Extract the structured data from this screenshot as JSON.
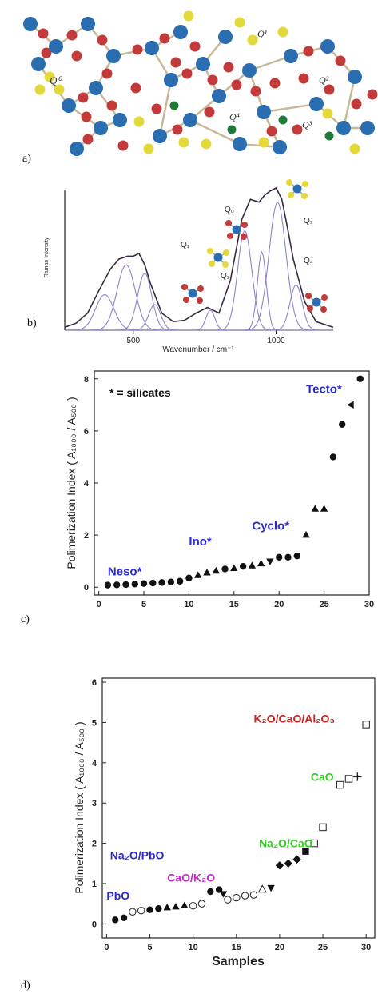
{
  "panel_labels": {
    "a": "a)",
    "b": "b)",
    "c": "c)",
    "d": "d)"
  },
  "chart_data": [
    {
      "panel": "a",
      "type": "other",
      "annotations": [
        "Q⁰",
        "Q¹",
        "Q²",
        "Q³",
        "Q⁴"
      ]
    },
    {
      "panel": "b",
      "type": "line",
      "xlabel": "Wavenumber / cm⁻¹",
      "ylabel": "Raman Intensity",
      "xlim": [
        260,
        1200
      ],
      "xticks": [
        "500",
        "1000"
      ],
      "xtick_values": [
        500,
        1000
      ],
      "annotations": [
        "Q₀",
        "Q₁",
        "Q₂",
        "Q₃",
        "Q₄"
      ],
      "series": [
        {
          "x": [
            260,
            300,
            340,
            380,
            420,
            450,
            480,
            500,
            520,
            540,
            560,
            600,
            640,
            680,
            720,
            760,
            800,
            840,
            880,
            910,
            940,
            960,
            980,
            1000,
            1020,
            1040,
            1060,
            1080,
            1100,
            1140,
            1200
          ],
          "values": [
            0.02,
            0.05,
            0.12,
            0.28,
            0.43,
            0.5,
            0.52,
            0.52,
            0.54,
            0.46,
            0.33,
            0.12,
            0.06,
            0.07,
            0.12,
            0.16,
            0.12,
            0.35,
            0.78,
            0.92,
            0.9,
            0.95,
            0.98,
            1.0,
            0.92,
            0.72,
            0.5,
            0.35,
            0.2,
            0.06,
            0.02
          ]
        }
      ],
      "components": [
        {
          "center": 400,
          "width": 45,
          "height": 0.25
        },
        {
          "center": 475,
          "width": 45,
          "height": 0.46
        },
        {
          "center": 540,
          "width": 35,
          "height": 0.4
        },
        {
          "center": 575,
          "width": 30,
          "height": 0.18
        },
        {
          "center": 770,
          "width": 22,
          "height": 0.14
        },
        {
          "center": 890,
          "width": 35,
          "height": 0.7
        },
        {
          "center": 950,
          "width": 22,
          "height": 0.55
        },
        {
          "center": 1005,
          "width": 42,
          "height": 0.9
        },
        {
          "center": 1070,
          "width": 30,
          "height": 0.32
        }
      ]
    },
    {
      "panel": "c",
      "type": "scatter",
      "xlabel": "",
      "ylabel": "Polimerization Index ( A₁₀₀₀ / A₅₀₀ )",
      "xlim": [
        -0.5,
        30
      ],
      "ylim": [
        -0.3,
        8.3
      ],
      "xticks": [
        "0",
        "5",
        "10",
        "15",
        "20",
        "25",
        "30"
      ],
      "xtick_values": [
        0,
        5,
        10,
        15,
        20,
        25,
        30
      ],
      "yticks": [
        "0",
        "2",
        "4",
        "6",
        "8"
      ],
      "ytick_values": [
        0,
        2,
        4,
        6,
        8
      ],
      "legend_note": "* = silicates",
      "annotations": [
        {
          "text": "Neso*",
          "x": 1,
          "y": 0.45
        },
        {
          "text": "Ino*",
          "x": 10,
          "y": 1.6
        },
        {
          "text": "Cyclo*",
          "x": 17,
          "y": 2.2
        },
        {
          "text": "Tecto*",
          "x": 23,
          "y": 7.45
        }
      ],
      "series": [
        {
          "marker": "circle",
          "points": [
            [
              1,
              0.08
            ],
            [
              2,
              0.09
            ],
            [
              3,
              0.1
            ],
            [
              4,
              0.12
            ],
            [
              5,
              0.14
            ],
            [
              6,
              0.16
            ],
            [
              7,
              0.18
            ],
            [
              8,
              0.2
            ],
            [
              9,
              0.23
            ],
            [
              10,
              0.35
            ],
            [
              14,
              0.7
            ],
            [
              16,
              0.8
            ],
            [
              20,
              1.15
            ],
            [
              21,
              1.15
            ],
            [
              22,
              1.2
            ],
            [
              26,
              5.0
            ],
            [
              27,
              6.25
            ],
            [
              29,
              8.0
            ]
          ]
        },
        {
          "marker": "triangle",
          "points": [
            [
              11,
              0.45
            ],
            [
              12,
              0.55
            ],
            [
              13,
              0.62
            ],
            [
              15,
              0.72
            ],
            [
              17,
              0.82
            ],
            [
              18,
              0.9
            ],
            [
              23,
              2.0
            ],
            [
              24,
              3.0
            ],
            [
              25,
              3.0
            ]
          ]
        },
        {
          "marker": "triangle-down",
          "points": [
            [
              19,
              1.0
            ]
          ]
        },
        {
          "marker": "triangle-left",
          "points": [
            [
              28,
              7.0
            ]
          ]
        }
      ]
    },
    {
      "panel": "d",
      "type": "scatter",
      "xlabel": "Samples",
      "ylabel": "Polimerization Index ( A₁₀₀₀ / A₅₀₀ )",
      "xlim": [
        -0.5,
        31
      ],
      "ylim": [
        -0.35,
        6.1
      ],
      "xticks": [
        "0",
        "5",
        "10",
        "15",
        "20",
        "25",
        "30"
      ],
      "xtick_values": [
        0,
        5,
        10,
        15,
        20,
        25,
        30
      ],
      "yticks": [
        "0",
        "1",
        "2",
        "3",
        "4",
        "5",
        "6"
      ],
      "ytick_values": [
        0,
        1,
        2,
        3,
        4,
        5,
        6
      ],
      "annotations": [
        {
          "text": "K₂O/CaO/Al₂O₃",
          "x": 17,
          "y": 5.0
        },
        {
          "text": "CaO",
          "x": 23.6,
          "y": 3.55
        },
        {
          "text": "Na₂O/CaO",
          "x": 17.6,
          "y": 1.9
        },
        {
          "text": "Na₂O/PbO",
          "x": 0.4,
          "y": 1.6
        },
        {
          "text": "CaO/K₂O",
          "x": 7,
          "y": 1.05
        },
        {
          "text": "PbO",
          "x": 0,
          "y": 0.6
        }
      ],
      "series": [
        {
          "marker": "circle",
          "points": [
            [
              1,
              0.1
            ],
            [
              2,
              0.15
            ],
            [
              5,
              0.35
            ],
            [
              6,
              0.38
            ],
            [
              12,
              0.8
            ],
            [
              13,
              0.85
            ]
          ]
        },
        {
          "marker": "circle-open",
          "points": [
            [
              3,
              0.3
            ],
            [
              4,
              0.33
            ],
            [
              10,
              0.45
            ],
            [
              11,
              0.5
            ],
            [
              14,
              0.6
            ],
            [
              15,
              0.65
            ],
            [
              16,
              0.7
            ],
            [
              17,
              0.72
            ]
          ]
        },
        {
          "marker": "triangle",
          "points": [
            [
              7,
              0.4
            ],
            [
              8,
              0.42
            ],
            [
              9,
              0.45
            ]
          ]
        },
        {
          "marker": "triangle-down",
          "points": [
            [
              13.5,
              0.75
            ],
            [
              19,
              0.9
            ]
          ]
        },
        {
          "marker": "triangle-open",
          "points": [
            [
              18,
              0.85
            ]
          ]
        },
        {
          "marker": "diamond",
          "points": [
            [
              20,
              1.45
            ],
            [
              21,
              1.5
            ],
            [
              22,
              1.6
            ]
          ]
        },
        {
          "marker": "square",
          "points": [
            [
              23,
              1.8
            ]
          ]
        },
        {
          "marker": "square-open",
          "points": [
            [
              24,
              2.0
            ],
            [
              25,
              2.4
            ],
            [
              27,
              3.45
            ],
            [
              28,
              3.6
            ],
            [
              30,
              4.95
            ]
          ]
        },
        {
          "marker": "plus",
          "points": [
            [
              29,
              3.65
            ]
          ]
        }
      ]
    }
  ]
}
